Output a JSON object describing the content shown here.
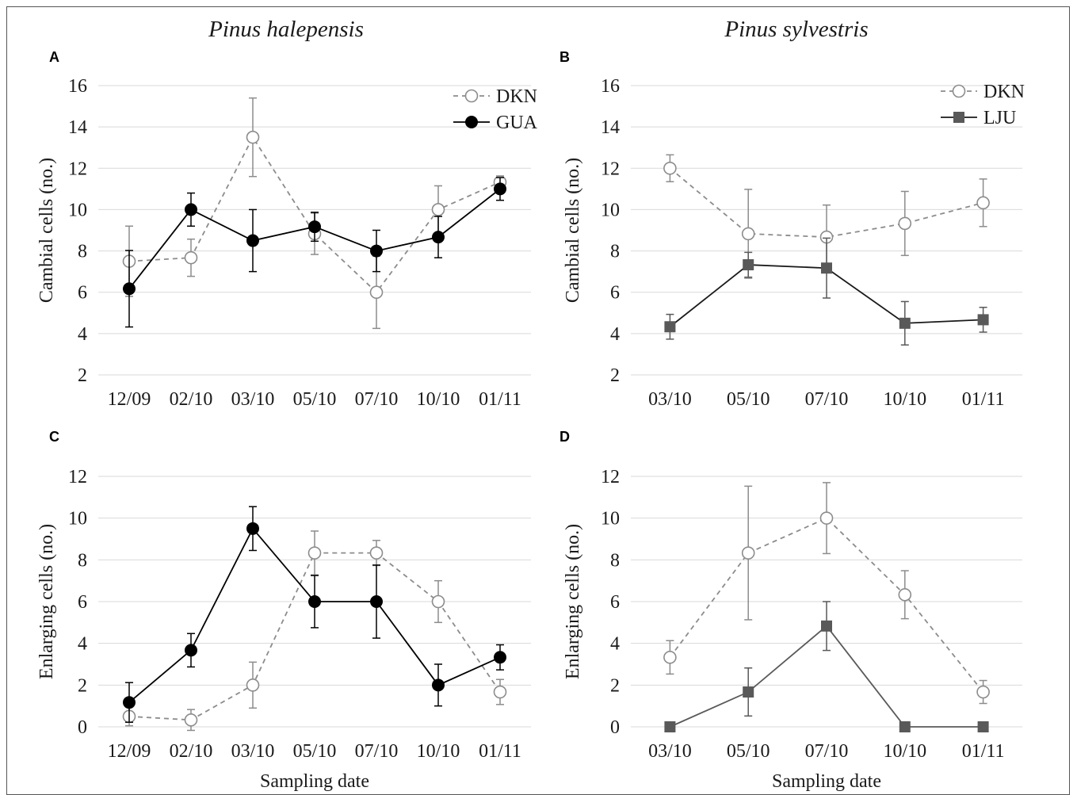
{
  "figure": {
    "species_left": "Pinus halepensis",
    "species_right": "Pinus sylvestris"
  },
  "colors": {
    "dkn": "#8c8c8c",
    "gua": "#000000",
    "lju": "#595959",
    "lju_line_top": "#1a1a1a",
    "lju_line_bottom": "#595959"
  },
  "chart_data": [
    {
      "panel": "A",
      "type": "line",
      "categories": [
        "12/09",
        "02/10",
        "03/10",
        "05/10",
        "07/10",
        "10/10",
        "01/11"
      ],
      "ylabel": "Cambial cells (no.)",
      "xlabel": "",
      "ylim": [
        2,
        16
      ],
      "yticks": [
        2,
        4,
        6,
        8,
        10,
        12,
        14,
        16
      ],
      "grid": true,
      "legend": "top-right",
      "series": [
        {
          "name": "DKN",
          "marker": "open-circle",
          "dash": true,
          "color": "#8c8c8c",
          "values": [
            7.5,
            7.67,
            13.5,
            8.83,
            6.0,
            10.0,
            11.33
          ],
          "errors": [
            1.7,
            0.9,
            1.9,
            1.0,
            1.75,
            1.15,
            0.3
          ]
        },
        {
          "name": "GUA",
          "marker": "filled-circle",
          "dash": false,
          "color": "#000000",
          "values": [
            6.17,
            10.0,
            8.5,
            9.17,
            8.0,
            8.67,
            11.0
          ],
          "errors": [
            1.85,
            0.8,
            1.5,
            0.7,
            1.0,
            1.0,
            0.55
          ]
        }
      ]
    },
    {
      "panel": "B",
      "type": "line",
      "categories": [
        "03/10",
        "05/10",
        "07/10",
        "10/10",
        "01/11"
      ],
      "ylabel": "Cambial cells (no.)",
      "xlabel": "",
      "ylim": [
        2,
        16
      ],
      "yticks": [
        2,
        4,
        6,
        8,
        10,
        12,
        14,
        16
      ],
      "grid": true,
      "legend": "top-right",
      "series": [
        {
          "name": "DKN",
          "marker": "open-circle",
          "dash": true,
          "color": "#8c8c8c",
          "values": [
            12.0,
            8.83,
            8.67,
            9.33,
            10.33
          ],
          "errors": [
            0.65,
            2.15,
            1.55,
            1.55,
            1.15
          ]
        },
        {
          "name": "LJU",
          "marker": "filled-square",
          "dash": false,
          "color": "#595959",
          "line_color": "#1a1a1a",
          "values": [
            4.33,
            7.33,
            7.17,
            4.5,
            4.67
          ],
          "errors": [
            0.6,
            0.6,
            1.45,
            1.05,
            0.6
          ]
        }
      ]
    },
    {
      "panel": "C",
      "type": "line",
      "categories": [
        "12/09",
        "02/10",
        "03/10",
        "05/10",
        "07/10",
        "10/10",
        "01/11"
      ],
      "ylabel": "Enlarging cells (no.)",
      "xlabel": "Sampling date",
      "ylim": [
        0,
        12
      ],
      "yticks": [
        0,
        2,
        4,
        6,
        8,
        10,
        12
      ],
      "grid": true,
      "series": [
        {
          "name": "DKN",
          "marker": "open-circle",
          "dash": true,
          "color": "#8c8c8c",
          "values": [
            0.5,
            0.33,
            2.0,
            8.33,
            8.33,
            6.0,
            1.67
          ],
          "errors": [
            0.45,
            0.5,
            1.1,
            1.05,
            0.6,
            1.0,
            0.6
          ]
        },
        {
          "name": "GUA",
          "marker": "filled-circle",
          "dash": false,
          "color": "#000000",
          "values": [
            1.17,
            3.67,
            9.5,
            6.0,
            6.0,
            2.0,
            3.33
          ],
          "errors": [
            0.95,
            0.8,
            1.05,
            1.25,
            1.75,
            1.0,
            0.6
          ]
        }
      ]
    },
    {
      "panel": "D",
      "type": "line",
      "categories": [
        "03/10",
        "05/10",
        "07/10",
        "10/10",
        "01/11"
      ],
      "ylabel": "Enlarging cells (no.)",
      "xlabel": "Sampling date",
      "ylim": [
        0,
        12
      ],
      "yticks": [
        0,
        2,
        4,
        6,
        8,
        10,
        12
      ],
      "grid": true,
      "series": [
        {
          "name": "DKN",
          "marker": "open-circle",
          "dash": true,
          "color": "#8c8c8c",
          "values": [
            3.33,
            8.33,
            10.0,
            6.33,
            1.67
          ],
          "errors": [
            0.8,
            3.2,
            1.7,
            1.15,
            0.55
          ]
        },
        {
          "name": "LJU",
          "marker": "filled-square",
          "dash": false,
          "color": "#595959",
          "line_color": "#595959",
          "values": [
            0.0,
            1.67,
            4.83,
            0.0,
            0.0
          ],
          "errors": [
            0,
            1.15,
            1.17,
            0,
            0
          ]
        }
      ]
    }
  ]
}
